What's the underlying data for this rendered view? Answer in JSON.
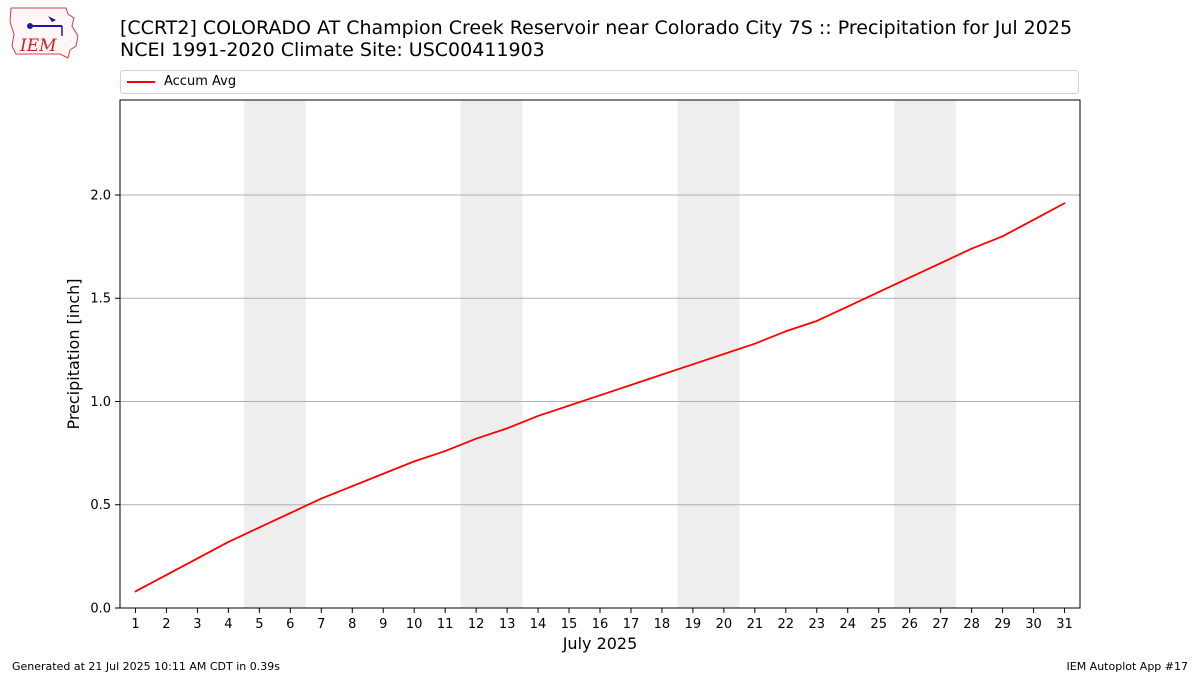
{
  "header": {
    "title_line1": "[CCRT2] COLORADO  AT Champion Creek Reservoir near Colorado City 7S :: Precipitation for Jul 2025",
    "title_line2": "NCEI 1991-2020 Climate Site: USC00411903"
  },
  "logo": {
    "text": "IEM"
  },
  "footer": {
    "left": "Generated at 21 Jul 2025 10:11 AM CDT in 0.39s",
    "right": "IEM Autoplot App #17"
  },
  "chart_data": {
    "type": "line",
    "xlabel": "July 2025",
    "ylabel": "Precipitation [inch]",
    "x": [
      1,
      2,
      3,
      4,
      5,
      6,
      7,
      8,
      9,
      10,
      11,
      12,
      13,
      14,
      15,
      16,
      17,
      18,
      19,
      20,
      21,
      22,
      23,
      24,
      25,
      26,
      27,
      28,
      29,
      30,
      31
    ],
    "xlim": [
      0.5,
      31.5
    ],
    "ylim": [
      0,
      2.46
    ],
    "yticks": [
      0.0,
      0.5,
      1.0,
      1.5,
      2.0
    ],
    "ytick_labels": [
      "0.0",
      "0.5",
      "1.0",
      "1.5",
      "2.0"
    ],
    "grid": "y-major",
    "weekend_shading": [
      [
        4.5,
        6.5
      ],
      [
        11.5,
        13.5
      ],
      [
        18.5,
        20.5
      ],
      [
        25.5,
        27.5
      ]
    ],
    "legend_position": "top",
    "series": [
      {
        "name": "Accum Avg",
        "color": "#ff0000",
        "values": [
          0.08,
          0.16,
          0.24,
          0.32,
          0.39,
          0.46,
          0.53,
          0.59,
          0.65,
          0.71,
          0.76,
          0.82,
          0.87,
          0.93,
          0.98,
          1.03,
          1.08,
          1.13,
          1.18,
          1.23,
          1.28,
          1.34,
          1.39,
          1.46,
          1.53,
          1.6,
          1.67,
          1.74,
          1.8,
          1.88,
          1.96
        ]
      }
    ]
  }
}
